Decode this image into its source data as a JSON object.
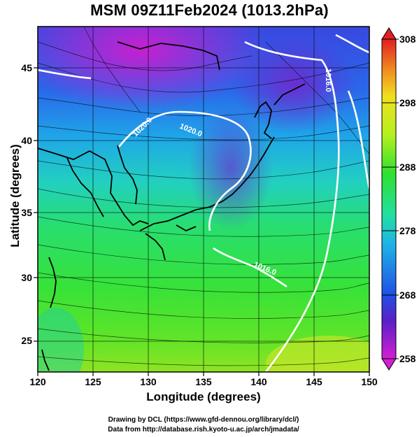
{
  "title": "MSM 09Z11Feb2024 (1013.2hPa)",
  "axes": {
    "xlabel": "Longitude (degrees)",
    "ylabel": "Latitude  (degrees)",
    "xticks": [
      "120",
      "125",
      "130",
      "135",
      "140",
      "145",
      "150"
    ],
    "yticks": [
      "25",
      "30",
      "35",
      "40",
      "45"
    ],
    "xlim": [
      120,
      150
    ],
    "ylim": [
      22.4,
      47.6
    ]
  },
  "colorbar": {
    "ticks": [
      "258",
      "268",
      "278",
      "288",
      "298",
      "308"
    ],
    "range": [
      258,
      308
    ],
    "colors": [
      "#d21fd2",
      "#5a20c8",
      "#2050e6",
      "#1fb4e6",
      "#20e0a0",
      "#30e030",
      "#b4f01e",
      "#f0e01e",
      "#f09020",
      "#e02020"
    ]
  },
  "isobars": [
    {
      "label": "1020.0"
    },
    {
      "label": "1020.0"
    },
    {
      "label": "1016.0"
    },
    {
      "label": "1016.0"
    }
  ],
  "credits": {
    "line1": "Drawing by DCL (https://www.gfd-dennou.org/library/dcl/)",
    "line2": "Data from http://database.rish.kyoto-u.ac.jp/arch/jmadata/"
  }
}
